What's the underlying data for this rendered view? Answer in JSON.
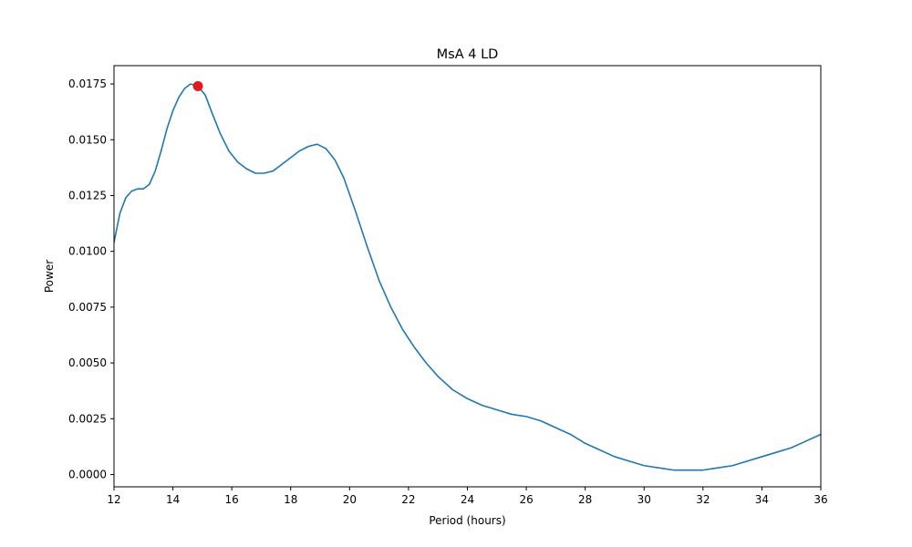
{
  "chart_data": {
    "type": "line",
    "title": "MsA 4 LD",
    "xlabel": "Period (hours)",
    "ylabel": "Power",
    "xlim": [
      12,
      36
    ],
    "ylim": [
      -0.00055,
      0.01832
    ],
    "grid": false,
    "xticks": [
      12,
      14,
      16,
      18,
      20,
      22,
      24,
      26,
      28,
      30,
      32,
      34,
      36
    ],
    "yticks": [
      0.0,
      0.0025,
      0.005,
      0.0075,
      0.01,
      0.0125,
      0.015,
      0.0175
    ],
    "ytick_labels": [
      "0.0000",
      "0.0025",
      "0.0050",
      "0.0075",
      "0.0100",
      "0.0125",
      "0.0150",
      "0.0175"
    ],
    "series": [
      {
        "color": "#1f77b4",
        "x": [
          12.0,
          12.2,
          12.4,
          12.6,
          12.8,
          13.0,
          13.2,
          13.4,
          13.6,
          13.8,
          14.0,
          14.2,
          14.4,
          14.6,
          14.85,
          15.1,
          15.3,
          15.6,
          15.9,
          16.2,
          16.5,
          16.8,
          17.1,
          17.4,
          17.7,
          18.0,
          18.3,
          18.6,
          18.9,
          19.2,
          19.5,
          19.8,
          20.2,
          20.6,
          21.0,
          21.4,
          21.8,
          22.2,
          22.6,
          23.0,
          23.5,
          24.0,
          24.5,
          25.0,
          25.5,
          26.0,
          26.5,
          27.0,
          27.5,
          28.0,
          28.5,
          29.0,
          29.5,
          30.0,
          30.5,
          31.0,
          31.5,
          32.0,
          32.5,
          33.0,
          33.5,
          34.0,
          34.5,
          35.0,
          35.5,
          36.0
        ],
        "y": [
          0.0104,
          0.0117,
          0.0124,
          0.0127,
          0.0128,
          0.0128,
          0.013,
          0.0136,
          0.0145,
          0.0155,
          0.0163,
          0.0169,
          0.0173,
          0.0175,
          0.0174,
          0.017,
          0.0163,
          0.0153,
          0.0145,
          0.014,
          0.0137,
          0.0135,
          0.0135,
          0.0136,
          0.0139,
          0.0142,
          0.0145,
          0.0147,
          0.0148,
          0.0146,
          0.0141,
          0.0133,
          0.0118,
          0.0102,
          0.0087,
          0.0075,
          0.0065,
          0.0057,
          0.005,
          0.0044,
          0.0038,
          0.0034,
          0.0031,
          0.0029,
          0.0027,
          0.0026,
          0.0024,
          0.0021,
          0.0018,
          0.0014,
          0.0011,
          0.0008,
          0.0006,
          0.0004,
          0.0003,
          0.0002,
          0.0002,
          0.0002,
          0.0003,
          0.0004,
          0.0006,
          0.0008,
          0.001,
          0.0012,
          0.0015,
          0.0018
        ]
      }
    ],
    "peak_marker": {
      "x": 14.85,
      "y": 0.0174,
      "color": "#e31a1c"
    }
  }
}
